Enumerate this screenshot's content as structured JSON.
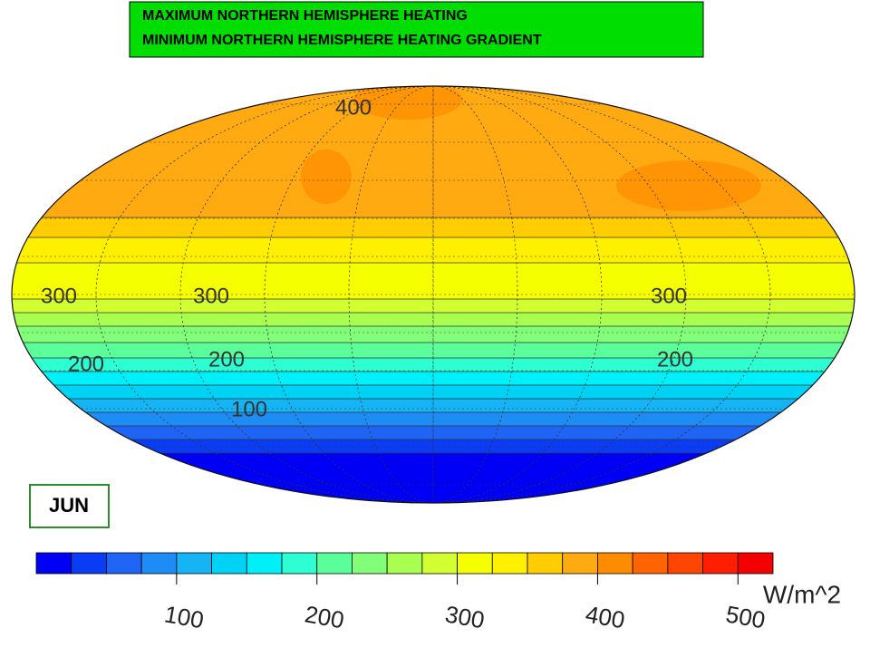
{
  "header": {
    "lines": [
      "MAXIMUM NORTHERN HEMISPHERE HEATING",
      "MINIMUM NORTHERN HEMISPHERE HEATING GRADIENT"
    ]
  },
  "month": "JUN",
  "map": {
    "contour_labels": [
      400,
      300,
      300,
      300,
      200,
      200,
      200,
      100
    ]
  },
  "colorbar": {
    "bins": [
      0,
      25,
      50,
      75,
      100,
      125,
      150,
      175,
      200,
      225,
      250,
      275,
      300,
      325,
      350,
      375,
      400,
      425,
      450,
      475,
      500,
      525
    ],
    "colors": [
      "#0000f5",
      "#0a3cf5",
      "#1e64f5",
      "#1e8cf5",
      "#14b4f5",
      "#00d2f5",
      "#00f0fa",
      "#2dffd2",
      "#5aff9b",
      "#82ff78",
      "#a8ff50",
      "#d2ff32",
      "#f5ff00",
      "#fff000",
      "#ffcd00",
      "#ffaa10",
      "#ff8c00",
      "#ff6400",
      "#ff4600",
      "#ff1e00",
      "#f50000"
    ],
    "ticks": [
      100,
      200,
      300,
      400,
      500
    ],
    "unit": "W/m^2"
  }
}
